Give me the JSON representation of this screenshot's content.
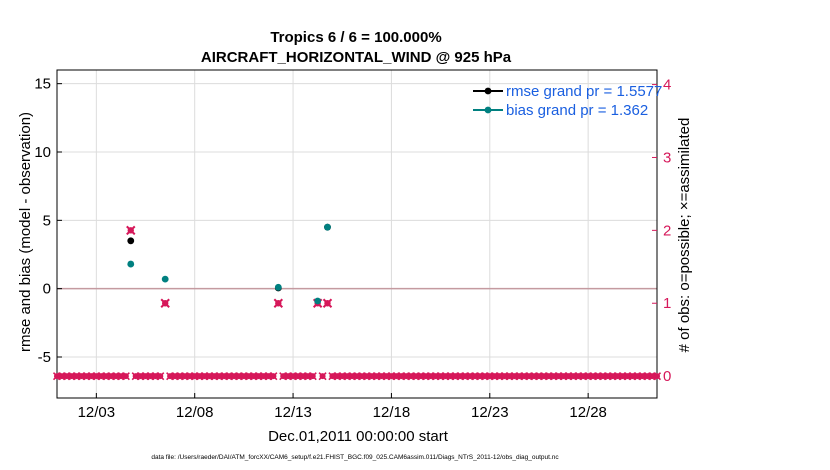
{
  "chart_data": {
    "type": "scatter",
    "title": "Tropics 6 / 6 = 100.000%",
    "subtitle": "AIRCRAFT_HORIZONTAL_WIND @ 925 hPa",
    "xlabel": "Dec.01,2011 00:00:00 start",
    "ylabel": "rmse and bias (model - observation)",
    "y2label": "# of obs: o=possible; ×=assimilated",
    "footnote": "data file: /Users/raeder/DAI/ATM_forcXX/CAM6_setup/f.e21.FHIST_BGC.f09_025.CAM6assim.011/Diags_NTrS_2011-12/obs_diag_output.nc",
    "xlim": [
      1,
      31.5
    ],
    "ylim": [
      -8,
      16
    ],
    "y2lim": [
      -0.3,
      4.2
    ],
    "x_ticks": [
      3,
      8,
      13,
      18,
      23,
      28
    ],
    "x_tick_labels": [
      "12/03",
      "12/08",
      "12/13",
      "12/18",
      "12/23",
      "12/28"
    ],
    "y_ticks": [
      -5,
      0,
      5,
      10,
      15
    ],
    "y_tick_labels": [
      "-5",
      "0",
      "5",
      "10",
      "15"
    ],
    "y2_ticks": [
      0,
      1,
      2,
      3,
      4
    ],
    "y2_tick_labels": [
      "0",
      "1",
      "2",
      "3",
      "4"
    ],
    "grid": true,
    "legend_position": "top-right",
    "colors": {
      "rmse": "#000000",
      "bias": "#008080",
      "obs": "#d6185a",
      "legend_text": "#1a5fe0",
      "zero_line": "#c49aa0",
      "grid": "#dcdcdc"
    },
    "series": [
      {
        "name": "rmse grand pr = 1.5577",
        "axis": "left",
        "points": [
          [
            4.75,
            3.5
          ],
          [
            12.25,
            0.05
          ],
          [
            14.75,
            4.5
          ]
        ]
      },
      {
        "name": "bias grand pr = 1.362",
        "axis": "left",
        "points": [
          [
            4.75,
            1.8
          ],
          [
            6.5,
            0.7
          ],
          [
            12.25,
            0.1
          ],
          [
            14.25,
            -0.9
          ],
          [
            14.75,
            4.5
          ]
        ]
      },
      {
        "name": "obs possible",
        "axis": "right",
        "points": [
          [
            4.75,
            2
          ],
          [
            6.5,
            1
          ],
          [
            12.25,
            1
          ],
          [
            14.25,
            1
          ],
          [
            14.75,
            1
          ]
        ]
      },
      {
        "name": "obs assimilated",
        "axis": "right",
        "points": [
          [
            4.75,
            2
          ],
          [
            6.5,
            1
          ],
          [
            12.25,
            1
          ],
          [
            14.25,
            1
          ],
          [
            14.75,
            1
          ]
        ]
      }
    ],
    "zero_obs_start": 1,
    "zero_obs_step": 0.25,
    "zero_obs_value": 0,
    "obs_gaps": [
      4.75,
      6.5,
      12.25,
      14.25,
      14.75
    ]
  }
}
